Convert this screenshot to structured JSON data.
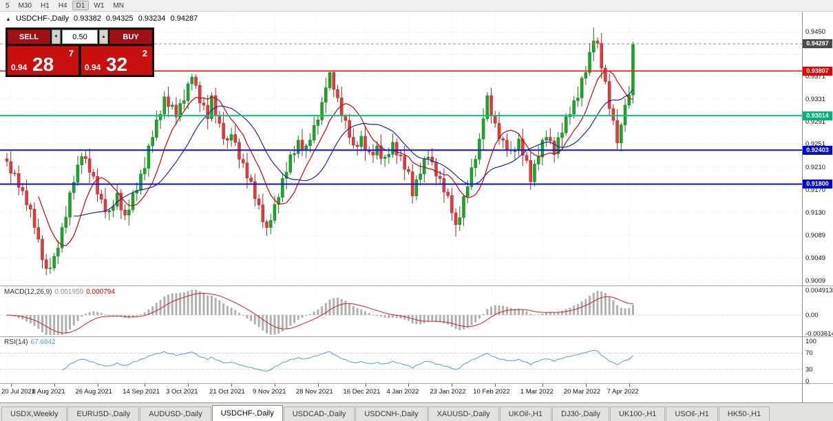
{
  "icons": {
    "symbol_marker": "▲",
    "caret_down": "▼",
    "caret_up": "▲"
  },
  "toolbar": {
    "timeframes": [
      "5",
      "M30",
      "H1",
      "H4",
      "D1",
      "W1",
      "MN"
    ],
    "active": "D1"
  },
  "chart": {
    "symbol_label": "USDCHF-,Daily",
    "ohlc": {
      "open": "0.93382",
      "high": "0.94325",
      "low": "0.93234",
      "close": "0.94287"
    }
  },
  "trade_panel": {
    "sell_label": "SELL",
    "buy_label": "BUY",
    "volume": "0.50",
    "sell_price": {
      "prefix": "0.94",
      "big": "28",
      "pip": "7"
    },
    "buy_price": {
      "prefix": "0.94",
      "big": "32",
      "pip": "2"
    }
  },
  "macd_panel": {
    "label": "MACD(12,26,9)",
    "value_main": "0.001959",
    "value_signal": "0.000794",
    "hist_color": "#b0b0b0",
    "signal_color": "#d02020",
    "axis_labels": [
      {
        "v": 0.004913,
        "t": "0.004913"
      },
      {
        "v": 0,
        "t": "0.00"
      },
      {
        "v": -0.003614,
        "t": "-0.003614"
      }
    ]
  },
  "rsi_panel": {
    "label": "RSI(14)",
    "value": "67.6842",
    "line_color": "#4f9bd6",
    "axis_labels": [
      {
        "v": 100,
        "t": "100"
      },
      {
        "v": 70,
        "t": "70"
      },
      {
        "v": 30,
        "t": "30"
      },
      {
        "v": 0,
        "t": "0"
      }
    ],
    "levels": [
      70,
      30
    ]
  },
  "tabs": {
    "active_index": 3,
    "items": [
      "USDX,Weekly",
      "EURUSD-,Daily",
      "AUDUSD-,Daily",
      "USDCHF-,Daily",
      "USDCAD-,Daily",
      "USDCNH-,Daily",
      "XAUUSD-,Daily",
      "UKOil-,H1",
      "DJ30-,Daily",
      "UK100-,H1",
      "USOil-,H1",
      "HK50-,H1"
    ]
  },
  "chart_data": {
    "type": "candlestick",
    "title": "USDCHF Daily",
    "ylim": [
      0.9,
      0.9486
    ],
    "up_color": "#1fa32a",
    "up_stroke": "#0e7a14",
    "down_color": "#e03c3c",
    "down_stroke": "#a82020",
    "grid_color": "#e0e0e0",
    "price_gridlines": [
      {
        "p": 0.945,
        "label": "0.9450"
      },
      {
        "p": 0.941,
        "label": ""
      },
      {
        "p": 0.9371,
        "label": "0.9371"
      },
      {
        "p": 0.9331,
        "label": "0.9331"
      },
      {
        "p": 0.9291,
        "label": "0.9291"
      },
      {
        "p": 0.9251,
        "label": "0.9251"
      },
      {
        "p": 0.921,
        "label": "0.9210"
      },
      {
        "p": 0.917,
        "label": "0.9170"
      },
      {
        "p": 0.913,
        "label": "0.9130"
      },
      {
        "p": 0.9089,
        "label": "0.9089"
      },
      {
        "p": 0.9049,
        "label": "0.9049"
      },
      {
        "p": 0.9009,
        "label": "0.9009"
      }
    ],
    "levels": [
      {
        "price": 0.94287,
        "label": "0.94287",
        "box_color": "#4a4a4a",
        "line_color": "#909090",
        "style": "dashed",
        "width": 1,
        "name": "current-price"
      },
      {
        "price": 0.93807,
        "label": "0.93807",
        "box_color": "#e60000",
        "line_color": "#ff1414",
        "style": "solid",
        "width": 1.6,
        "name": "resistance"
      },
      {
        "price": 0.93014,
        "label": "0.93014",
        "box_color": "#00b376",
        "line_color": "#00c77f",
        "style": "solid",
        "width": 2,
        "name": "support-1"
      },
      {
        "price": 0.92403,
        "label": "0.92403",
        "box_color": "#0000dd",
        "line_color": "#0d0df0",
        "style": "solid",
        "width": 2,
        "name": "support-2"
      },
      {
        "price": 0.918,
        "label": "0.91800",
        "box_color": "#0000dd",
        "line_color": "#0d0df0",
        "style": "solid",
        "width": 2,
        "name": "support-3"
      }
    ],
    "moving_averages": [
      {
        "period": 9,
        "color": "#cc0000"
      },
      {
        "period": 18,
        "color": "#2121b0"
      }
    ],
    "date_ticks": {
      "labels": [
        "20 Jul 2021",
        "8 Aug 2021",
        "26 Aug 2021",
        "14 Sep 2021",
        "3 Oct 2021",
        "21 Oct 2021",
        "9 Nov 2021",
        "28 Nov 2021",
        "16 Dec 2021",
        "4 Jan 2022",
        "23 Jan 2022",
        "10 Feb 2022",
        "1 Mar 2022",
        "20 Mar 2022",
        "7 Apr 2022"
      ],
      "indices": [
        1,
        12,
        23,
        35,
        46,
        57,
        68,
        79,
        91,
        102,
        113,
        124,
        136,
        147,
        158
      ]
    },
    "candles": [
      [
        0.9225,
        0.9235,
        0.9211,
        0.922
      ],
      [
        0.922,
        0.9238,
        0.91803,
        0.91993
      ],
      [
        0.91993,
        0.92053,
        0.91937,
        0.91987
      ],
      [
        0.91987,
        0.92127,
        0.916,
        0.9174
      ],
      [
        0.9174,
        0.9182,
        0.916,
        0.9168
      ],
      [
        0.9168,
        0.9188,
        0.9132,
        0.9143
      ],
      [
        0.9143,
        0.9147,
        0.91205,
        0.91355
      ],
      [
        0.91355,
        0.91475,
        0.9091,
        0.9103
      ],
      [
        0.9103,
        0.9119,
        0.90763,
        0.90823
      ],
      [
        0.90823,
        0.90893,
        0.90297,
        0.90457
      ],
      [
        0.90457,
        0.90557,
        0.9018,
        0.903
      ],
      [
        0.903,
        0.9049,
        0.9021,
        0.9031
      ],
      [
        0.9031,
        0.9058,
        0.9026,
        0.9052
      ],
      [
        0.9052,
        0.90805,
        0.9038,
        0.90665
      ],
      [
        0.90665,
        0.9111,
        0.90585,
        0.9103
      ],
      [
        0.9103,
        0.91413,
        0.9092,
        0.91213
      ],
      [
        0.91213,
        0.91687,
        0.91063,
        0.91647
      ],
      [
        0.91647,
        0.9195,
        0.91527,
        0.9183
      ],
      [
        0.9183,
        0.923,
        0.9177,
        0.9214
      ],
      [
        0.9214,
        0.9236,
        0.9198,
        0.9229
      ],
      [
        0.9229,
        0.9239,
        0.9216,
        0.9225
      ],
      [
        0.9225,
        0.9243,
        0.9182,
        0.9201
      ],
      [
        0.9201,
        0.9207,
        0.91887,
        0.91937
      ],
      [
        0.91937,
        0.92077,
        0.91483,
        0.91623
      ],
      [
        0.91623,
        0.91703,
        0.9145,
        0.9153
      ],
      [
        0.9153,
        0.9173,
        0.91195,
        0.91305
      ],
      [
        0.91305,
        0.9137,
        0.91155,
        0.9133
      ],
      [
        0.9133,
        0.91525,
        0.9121,
        0.91405
      ],
      [
        0.91405,
        0.918,
        0.91345,
        0.9164
      ],
      [
        0.9164,
        0.9171,
        0.9118,
        0.9134
      ],
      [
        0.9134,
        0.9144,
        0.9116,
        0.9125
      ],
      [
        0.9125,
        0.91523,
        0.9106,
        0.91343
      ],
      [
        0.91343,
        0.91697,
        0.91293,
        0.91637
      ],
      [
        0.91637,
        0.9183,
        0.91497,
        0.9169
      ],
      [
        0.9169,
        0.9206,
        0.9161,
        0.9198
      ],
      [
        0.9198,
        0.9228,
        0.9187,
        0.9208
      ],
      [
        0.9208,
        0.9252,
        0.9193,
        0.9248
      ],
      [
        0.9248,
        0.9275,
        0.9236,
        0.9263
      ],
      [
        0.9263,
        0.931,
        0.9257,
        0.9294
      ],
      [
        0.9294,
        0.9311,
        0.9278,
        0.9304
      ],
      [
        0.9304,
        0.9345,
        0.9295,
        0.9335
      ],
      [
        0.9335,
        0.9353,
        0.92987,
        0.93177
      ],
      [
        0.93177,
        0.93263,
        0.93127,
        0.93203
      ],
      [
        0.93203,
        0.93343,
        0.9285,
        0.9299
      ],
      [
        0.9299,
        0.9331,
        0.9291,
        0.9323
      ],
      [
        0.9323,
        0.9348,
        0.9312,
        0.9328
      ],
      [
        0.9328,
        0.9362,
        0.9313,
        0.9358
      ],
      [
        0.9358,
        0.9376,
        0.9346,
        0.937
      ],
      [
        0.937,
        0.9375,
        0.9349,
        0.9355
      ],
      [
        0.9355,
        0.9362,
        0.9308,
        0.9324
      ],
      [
        0.9324,
        0.9334,
        0.9311,
        0.932
      ],
      [
        0.932,
        0.9338,
        0.9277,
        0.9296
      ],
      [
        0.9296,
        0.9343,
        0.9291,
        0.9337
      ],
      [
        0.9337,
        0.9351,
        0.92875,
        0.93015
      ],
      [
        0.93015,
        0.93095,
        0.928,
        0.9288
      ],
      [
        0.9288,
        0.9308,
        0.92495,
        0.92605
      ],
      [
        0.92605,
        0.92645,
        0.9243,
        0.9258
      ],
      [
        0.9258,
        0.928,
        0.9246,
        0.9268
      ],
      [
        0.9268,
        0.9284,
        0.9248,
        0.9254
      ],
      [
        0.9254,
        0.9261,
        0.9208,
        0.9224
      ],
      [
        0.9224,
        0.9234,
        0.92085,
        0.92175
      ],
      [
        0.92175,
        0.92355,
        0.9172,
        0.9191
      ],
      [
        0.9191,
        0.9197,
        0.91795,
        0.91845
      ],
      [
        0.91845,
        0.91985,
        0.914,
        0.9154
      ],
      [
        0.9154,
        0.9162,
        0.9135,
        0.9143
      ],
      [
        0.9143,
        0.9163,
        0.9102,
        0.9113
      ],
      [
        0.9113,
        0.9117,
        0.9088,
        0.9103
      ],
      [
        0.9103,
        0.91275,
        0.9091,
        0.91155
      ],
      [
        0.91155,
        0.916,
        0.91095,
        0.9144
      ],
      [
        0.9144,
        0.91635,
        0.9128,
        0.91565
      ],
      [
        0.91565,
        0.92,
        0.91475,
        0.919
      ],
      [
        0.919,
        0.9219,
        0.9171,
        0.9201
      ],
      [
        0.9201,
        0.9238,
        0.9196,
        0.9232
      ],
      [
        0.9232,
        0.9248,
        0.9218,
        0.9234
      ],
      [
        0.9234,
        0.9266,
        0.9226,
        0.9258
      ],
      [
        0.9258,
        0.9278,
        0.92295,
        0.92405
      ],
      [
        0.92405,
        0.9252,
        0.92255,
        0.9248
      ],
      [
        0.9248,
        0.927,
        0.9236,
        0.9258
      ],
      [
        0.9258,
        0.93,
        0.9252,
        0.9284
      ],
      [
        0.9284,
        0.9301,
        0.9268,
        0.9294
      ],
      [
        0.9294,
        0.9335,
        0.9285,
        0.9325
      ],
      [
        0.9325,
        0.9369,
        0.9306,
        0.9351
      ],
      [
        0.9351,
        0.9381,
        0.9346,
        0.9378
      ],
      [
        0.9378,
        0.938,
        0.9334,
        0.9348
      ],
      [
        0.9348,
        0.9356,
        0.9325,
        0.9333
      ],
      [
        0.9333,
        0.9353,
        0.92895,
        0.93005
      ],
      [
        0.93005,
        0.93045,
        0.9278,
        0.9293
      ],
      [
        0.9293,
        0.9305,
        0.9251,
        0.9263
      ],
      [
        0.9263,
        0.9279,
        0.9243,
        0.9249
      ],
      [
        0.9249,
        0.9256,
        0.92305,
        0.92465
      ],
      [
        0.92465,
        0.9275,
        0.92375,
        0.9265
      ],
      [
        0.9265,
        0.9283,
        0.9222,
        0.9241
      ],
      [
        0.9241,
        0.9247,
        0.9232,
        0.9237
      ],
      [
        0.9237,
        0.9251,
        0.92175,
        0.92315
      ],
      [
        0.92315,
        0.9256,
        0.92235,
        0.9248
      ],
      [
        0.9248,
        0.9268,
        0.92145,
        0.92255
      ],
      [
        0.92255,
        0.9232,
        0.92105,
        0.9228
      ],
      [
        0.9228,
        0.9245,
        0.9216,
        0.9233
      ],
      [
        0.9233,
        0.927,
        0.9227,
        0.9254
      ],
      [
        0.9254,
        0.9261,
        0.92155,
        0.92315
      ],
      [
        0.92315,
        0.92415,
        0.9221,
        0.923
      ],
      [
        0.923,
        0.9248,
        0.9187,
        0.9206
      ],
      [
        0.9206,
        0.9212,
        0.9197,
        0.9202
      ],
      [
        0.9202,
        0.9216,
        0.9145,
        0.9159
      ],
      [
        0.9159,
        0.9196,
        0.9151,
        0.9188
      ],
      [
        0.9188,
        0.9218,
        0.9177,
        0.9198
      ],
      [
        0.9198,
        0.92295,
        0.9183,
        0.92255
      ],
      [
        0.92255,
        0.924,
        0.92135,
        0.9228
      ],
      [
        0.9228,
        0.9244,
        0.9213,
        0.9219
      ],
      [
        0.9219,
        0.9226,
        0.9178,
        0.9194
      ],
      [
        0.9194,
        0.9204,
        0.9181,
        0.919
      ],
      [
        0.919,
        0.9208,
        0.9147,
        0.9166
      ],
      [
        0.9166,
        0.9172,
        0.91545,
        0.91595
      ],
      [
        0.91595,
        0.91735,
        0.9115,
        0.9129
      ],
      [
        0.9129,
        0.9137,
        0.9087,
        0.9108
      ],
      [
        0.9108,
        0.91405,
        0.9097,
        0.91205
      ],
      [
        0.91205,
        0.9162,
        0.91055,
        0.9158
      ],
      [
        0.9158,
        0.91875,
        0.9146,
        0.91755
      ],
      [
        0.91755,
        0.9225,
        0.91695,
        0.9209
      ],
      [
        0.9209,
        0.9231,
        0.9193,
        0.9224
      ],
      [
        0.9224,
        0.927,
        0.9215,
        0.926
      ],
      [
        0.926,
        0.9314,
        0.9241,
        0.9296
      ],
      [
        0.9296,
        0.9343,
        0.9291,
        0.9337
      ],
      [
        0.9337,
        0.9351,
        0.92875,
        0.93015
      ],
      [
        0.93015,
        0.93095,
        0.928,
        0.9288
      ],
      [
        0.9288,
        0.9308,
        0.92495,
        0.92605
      ],
      [
        0.92605,
        0.92645,
        0.9243,
        0.9258
      ],
      [
        0.9258,
        0.927,
        0.92285,
        0.92405
      ],
      [
        0.92405,
        0.92565,
        0.9233,
        0.9239
      ],
      [
        0.9239,
        0.9246,
        0.9223,
        0.9239
      ],
      [
        0.9239,
        0.927,
        0.923,
        0.926
      ],
      [
        0.926,
        0.9278,
        0.9212,
        0.9231
      ],
      [
        0.9231,
        0.9237,
        0.9217,
        0.9222
      ],
      [
        0.9222,
        0.9236,
        0.917,
        0.9184
      ],
      [
        0.9184,
        0.92235,
        0.9176,
        0.92155
      ],
      [
        0.92155,
        0.9248,
        0.92045,
        0.9228
      ],
      [
        0.9228,
        0.9262,
        0.9213,
        0.9258
      ],
      [
        0.9258,
        0.9275,
        0.9246,
        0.9263
      ],
      [
        0.9263,
        0.9279,
        0.92505,
        0.92565
      ],
      [
        0.92565,
        0.92635,
        0.9218,
        0.9234
      ],
      [
        0.9234,
        0.92725,
        0.9225,
        0.92625
      ],
      [
        0.92625,
        0.9289,
        0.92435,
        0.9271
      ],
      [
        0.9271,
        0.93055,
        0.9266,
        0.92995
      ],
      [
        0.92995,
        0.9318,
        0.92855,
        0.9304
      ],
      [
        0.9304,
        0.9336,
        0.9296,
        0.9328
      ],
      [
        0.9328,
        0.9353,
        0.9317,
        0.9333
      ],
      [
        0.9333,
        0.9372,
        0.9318,
        0.9368
      ],
      [
        0.9368,
        0.939,
        0.9356,
        0.9378
      ],
      [
        0.9378,
        0.943,
        0.9372,
        0.9414
      ],
      [
        0.9414,
        0.9458,
        0.9398,
        0.9434
      ],
      [
        0.9434,
        0.944,
        0.9421,
        0.943
      ],
      [
        0.943,
        0.9448,
        0.9367,
        0.9386
      ],
      [
        0.9386,
        0.9392,
        0.9357,
        0.9362
      ],
      [
        0.9362,
        0.9376,
        0.93,
        0.9314
      ],
      [
        0.9314,
        0.9322,
        0.9285,
        0.9293
      ],
      [
        0.9293,
        0.9313,
        0.9242,
        0.9253
      ],
      [
        0.9253,
        0.9289,
        0.9238,
        0.9285
      ],
      [
        0.9285,
        0.9332,
        0.9273,
        0.932
      ],
      [
        0.932,
        0.93542,
        0.9314,
        0.93382
      ],
      [
        0.93382,
        0.94325,
        0.93234,
        0.94287
      ]
    ]
  }
}
